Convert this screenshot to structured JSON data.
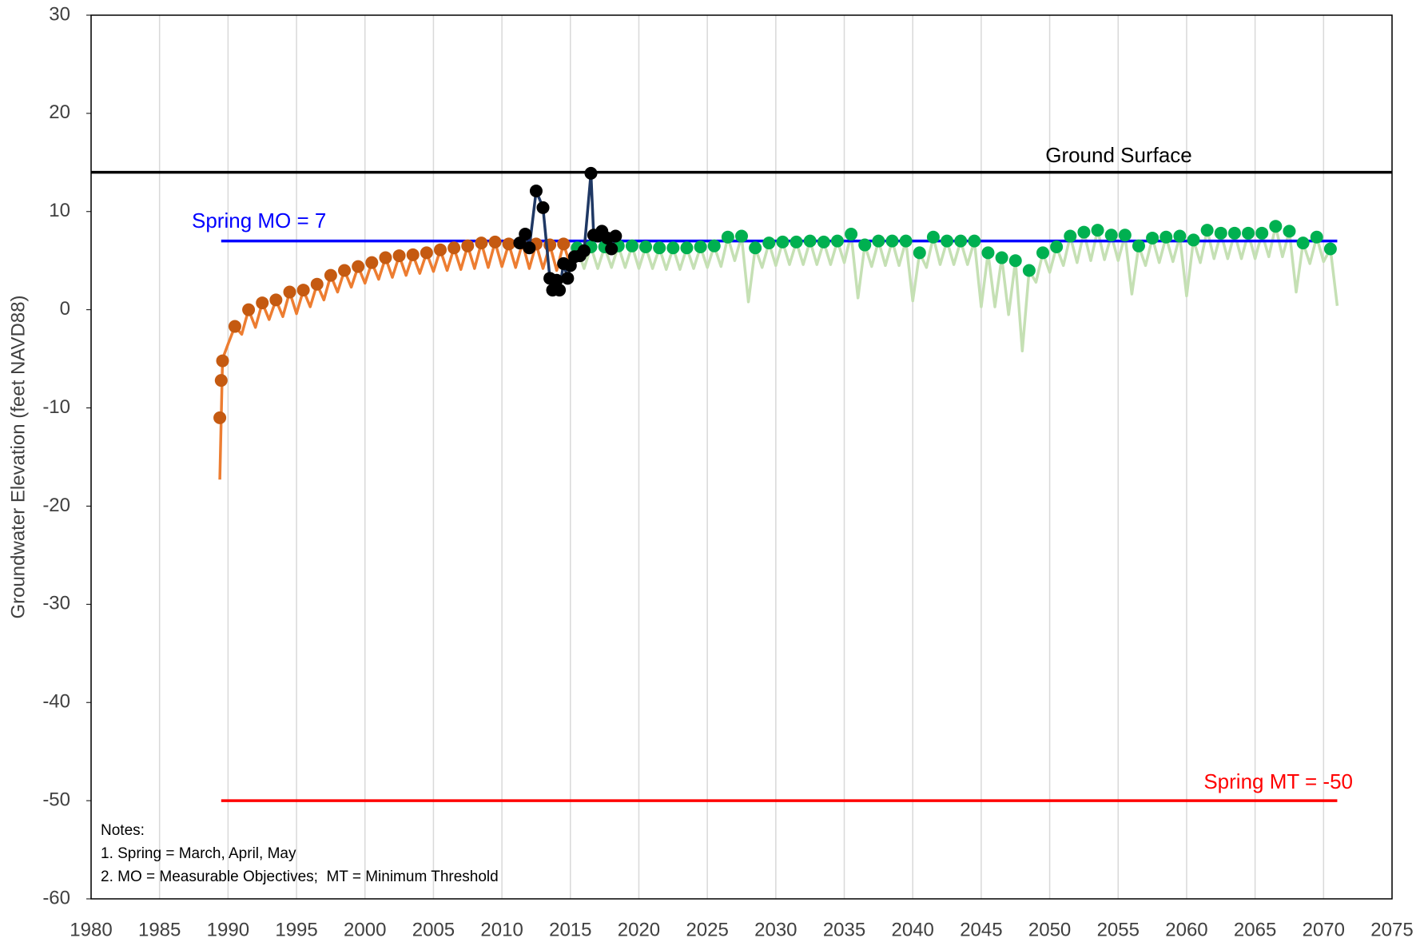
{
  "chart_data": {
    "type": "scatter",
    "y_label": "Groundwater Elevation (feet NAVD88)",
    "xlim": [
      1980,
      2075
    ],
    "ylim": [
      -60,
      30
    ],
    "xticks": [
      1980,
      1985,
      1990,
      1995,
      2000,
      2005,
      2010,
      2015,
      2020,
      2025,
      2030,
      2035,
      2040,
      2045,
      2050,
      2055,
      2060,
      2065,
      2070,
      2075
    ],
    "yticks": [
      -60,
      -50,
      -40,
      -30,
      -20,
      -10,
      0,
      10,
      20,
      30
    ],
    "grid": "x",
    "annotations": [
      "Ground Surface",
      "Spring MO = 7",
      "Spring MT = -50"
    ],
    "notes": [
      "Notes:",
      "1. Spring = March, April, May",
      "2. MO = Measurable Objectives;  MT = Minimum Threshold"
    ],
    "series": [
      {
        "mode": "line",
        "color": "#c5e0b4",
        "x": [
          2015.5,
          2016,
          2016.5,
          2017,
          2017.5,
          2018,
          2018.5,
          2019,
          2019.5,
          2020,
          2020.5,
          2021,
          2021.5,
          2022,
          2022.5,
          2023,
          2023.5,
          2024,
          2024.5,
          2025,
          2025.5,
          2026,
          2026.5,
          2027,
          2027.5,
          2028,
          2028.5,
          2029,
          2029.5,
          2030,
          2030.5,
          2031,
          2031.5,
          2032,
          2032.5,
          2033,
          2033.5,
          2034,
          2034.5,
          2035,
          2035.5,
          2036,
          2036.5,
          2037,
          2037.5,
          2038,
          2038.5,
          2039,
          2039.5,
          2040,
          2040.5,
          2041,
          2041.5,
          2042,
          2042.5,
          2043,
          2043.5,
          2044,
          2044.5,
          2045,
          2045.5,
          2046,
          2046.5,
          2047,
          2047.5,
          2048,
          2048.5,
          2049,
          2049.5,
          2050,
          2050.5,
          2051,
          2051.5,
          2052,
          2052.5,
          2053,
          2053.5,
          2054,
          2054.5,
          2055,
          2055.5,
          2056,
          2056.5,
          2057,
          2057.5,
          2058,
          2058.5,
          2059,
          2059.5,
          2060,
          2060.5,
          2061,
          2061.5,
          2062,
          2062.5,
          2063,
          2063.5,
          2064,
          2064.5,
          2065,
          2065.5,
          2066,
          2066.5,
          2067,
          2067.5,
          2068,
          2068.5,
          2069,
          2069.5,
          2070,
          2070.5,
          2071
        ],
        "values": [
          6.3,
          4.2,
          6.4,
          4.2,
          6.4,
          4.3,
          6.5,
          4.3,
          6.5,
          4.2,
          6.4,
          4.2,
          6.3,
          4.1,
          6.3,
          4.1,
          6.3,
          4.2,
          6.4,
          4.3,
          6.5,
          4.4,
          7.4,
          5.0,
          7.5,
          0.8,
          6.3,
          4.3,
          6.8,
          4.5,
          6.9,
          4.6,
          6.9,
          4.6,
          7,
          4.6,
          6.9,
          4.6,
          7,
          4.8,
          7.7,
          1.2,
          6.6,
          4.4,
          7,
          4.5,
          7,
          4.5,
          7,
          0.9,
          5.8,
          4.3,
          7.4,
          4.6,
          7,
          4.6,
          7,
          4.6,
          7,
          0.3,
          5.8,
          0.3,
          5.3,
          -0.5,
          5,
          -4.2,
          4,
          2.8,
          5.8,
          3.8,
          6.4,
          4.5,
          7.5,
          4.8,
          7.9,
          5,
          8.1,
          5.1,
          7.6,
          5,
          7.6,
          1.6,
          6.5,
          4.5,
          7.3,
          4.8,
          7.4,
          4.9,
          7.5,
          1.4,
          7.1,
          4.8,
          8.1,
          5.2,
          7.8,
          5.2,
          7.8,
          5.2,
          7.8,
          5.2,
          7.8,
          5.4,
          8.5,
          5.4,
          8,
          1.8,
          6.8,
          4.7,
          7.4,
          4.9,
          6.2,
          0.4
        ]
      },
      {
        "mode": "line",
        "color": "#ed7d31",
        "x": [
          1989.4,
          1989.6,
          1990,
          1990.5,
          1991,
          1991.5,
          1992,
          1992.5,
          1993,
          1993.5,
          1994,
          1994.5,
          1995,
          1995.5,
          1996,
          1996.5,
          1997,
          1997.5,
          1998,
          1998.5,
          1999,
          1999.5,
          2000,
          2000.5,
          2001,
          2001.5,
          2002,
          2002.5,
          2003,
          2003.5,
          2004,
          2004.5,
          2005,
          2005.5,
          2006,
          2006.5,
          2007,
          2007.5,
          2008,
          2008.5,
          2009,
          2009.5,
          2010,
          2010.5,
          2011,
          2011.5,
          2012,
          2012.5,
          2013,
          2013.5,
          2014,
          2014.5,
          2015
        ],
        "values": [
          -17.3,
          -5,
          -3.5,
          -1.7,
          -2.5,
          0,
          -1.8,
          0.7,
          -1,
          1,
          -0.7,
          1.8,
          -0.4,
          2,
          0.3,
          2.6,
          1,
          3.5,
          1.8,
          4,
          2.3,
          4.4,
          2.7,
          4.8,
          3.1,
          5.3,
          3.3,
          5.5,
          3.5,
          5.6,
          3.7,
          5.8,
          3.9,
          6.1,
          4,
          6.3,
          4.1,
          6.5,
          4.2,
          6.8,
          4.3,
          6.9,
          4.4,
          6.7,
          4.3,
          6.8,
          4.2,
          6.7,
          4.2,
          6.6,
          4,
          6.7,
          4.5
        ]
      },
      {
        "mode": "line",
        "color": "#000000",
        "x": [
          1980,
          2075
        ],
        "values": [
          14,
          14
        ]
      },
      {
        "mode": "line",
        "color": "#0000ff",
        "x": [
          1989.5,
          2071
        ],
        "values": [
          7,
          7
        ]
      },
      {
        "mode": "line",
        "color": "#ff0000",
        "x": [
          1989.5,
          2071
        ],
        "values": [
          -50,
          -50
        ]
      },
      {
        "mode": "markers",
        "color": "#c55a11",
        "x": [
          1989.4,
          1989.5,
          1989.6,
          1990.5,
          1991.5,
          1992.5,
          1993.5,
          1994.5,
          1995.5,
          1996.5,
          1997.5,
          1998.5,
          1999.5,
          2000.5,
          2001.5,
          2002.5,
          2003.5,
          2004.5,
          2005.5,
          2006.5,
          2007.5,
          2008.5,
          2009.5,
          2010.5,
          2011.5,
          2012.5,
          2013.5,
          2014.5
        ],
        "values": [
          -11,
          -7.2,
          -5.2,
          -1.7,
          0,
          0.7,
          1,
          1.8,
          2,
          2.6,
          3.5,
          4,
          4.4,
          4.8,
          5.3,
          5.5,
          5.6,
          5.8,
          6.1,
          6.3,
          6.5,
          6.8,
          6.9,
          6.7,
          6.8,
          6.7,
          6.6,
          6.7
        ]
      },
      {
        "mode": "markers",
        "color": "#00b050",
        "x": [
          2015.5,
          2016.5,
          2017.5,
          2018.5,
          2019.5,
          2020.5,
          2021.5,
          2022.5,
          2023.5,
          2024.5,
          2025.5,
          2026.5,
          2027.5,
          2028.5,
          2029.5,
          2030.5,
          2031.5,
          2032.5,
          2033.5,
          2034.5,
          2035.5,
          2036.5,
          2037.5,
          2038.5,
          2039.5,
          2040.5,
          2041.5,
          2042.5,
          2043.5,
          2044.5,
          2045.5,
          2046.5,
          2047.5,
          2048.5,
          2049.5,
          2050.5,
          2051.5,
          2052.5,
          2053.5,
          2054.5,
          2055.5,
          2056.5,
          2057.5,
          2058.5,
          2059.5,
          2060.5,
          2061.5,
          2062.5,
          2063.5,
          2064.5,
          2065.5,
          2066.5,
          2067.5,
          2068.5,
          2069.5,
          2070.5
        ],
        "values": [
          6.3,
          6.4,
          6.4,
          6.5,
          6.5,
          6.4,
          6.3,
          6.3,
          6.3,
          6.4,
          6.5,
          7.4,
          7.5,
          6.3,
          6.8,
          6.9,
          6.9,
          7,
          6.9,
          7,
          7.7,
          6.6,
          7,
          7,
          7,
          5.8,
          7.4,
          7,
          7,
          7,
          5.8,
          5.3,
          5,
          4,
          5.8,
          6.4,
          7.5,
          7.9,
          8.1,
          7.6,
          7.6,
          6.5,
          7.3,
          7.4,
          7.5,
          7.1,
          8.1,
          7.8,
          7.8,
          7.8,
          7.8,
          8.5,
          8,
          6.8,
          7.4,
          6.2
        ]
      },
      {
        "mode": "lines+markers",
        "color": "#000000",
        "line_color": "#1f3864",
        "x": [
          2011.3,
          2011.7,
          2012,
          2012.5,
          2013,
          2013.5,
          2013.7,
          2014,
          2014.2,
          2014.5,
          2014.8,
          2015,
          2015.3,
          2015.7,
          2016,
          2016.5,
          2016.7,
          2017,
          2017.3,
          2017.7,
          2018,
          2018.3
        ],
        "values": [
          6.8,
          7.7,
          6.3,
          12.1,
          10.4,
          3.2,
          2,
          3,
          2,
          4.7,
          3.2,
          4.5,
          5.4,
          5.5,
          6,
          13.9,
          7.6,
          7.5,
          8,
          7.3,
          6.2,
          7.5
        ]
      }
    ]
  }
}
